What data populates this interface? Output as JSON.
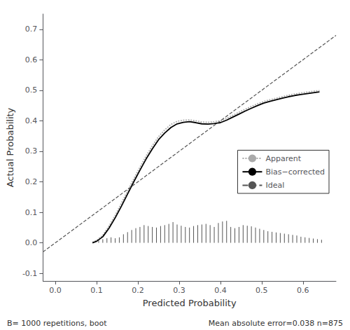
{
  "chart_data": {
    "type": "line",
    "xlabel": "Predicted Probability",
    "ylabel": "Actual Probability",
    "annotations": [
      "B= 1000 repetitions, boot",
      "Mean absolute error=0.038 n=875"
    ],
    "xlim": [
      -0.03,
      0.68
    ],
    "ylim": [
      -0.125,
      0.75
    ],
    "xticks": [
      {
        "value": 0.0,
        "label": "0.0"
      },
      0.1,
      0.2,
      0.3,
      0.4,
      0.5,
      0.6
    ],
    "yticks": [
      -0.1,
      {
        "value": 0.0,
        "label": "0.0"
      },
      0.1,
      0.2,
      0.3,
      0.4,
      0.5,
      0.6,
      0.7
    ],
    "grid": false,
    "legend": "lower right",
    "series": [
      {
        "name": "Apparent",
        "type": "line",
        "color": "#aaaaaa",
        "line_style": "dotted",
        "x": [
          0.09,
          0.1,
          0.115,
          0.13,
          0.145,
          0.16,
          0.175,
          0.19,
          0.205,
          0.22,
          0.235,
          0.25,
          0.265,
          0.28,
          0.295,
          0.31,
          0.325,
          0.34,
          0.355,
          0.37,
          0.385,
          0.4,
          0.415,
          0.43,
          0.445,
          0.46,
          0.475,
          0.49,
          0.505,
          0.52,
          0.535,
          0.55,
          0.565,
          0.58,
          0.595,
          0.61,
          0.625,
          0.64
        ],
        "values": [
          0.002,
          0.008,
          0.025,
          0.055,
          0.09,
          0.13,
          0.17,
          0.21,
          0.248,
          0.285,
          0.318,
          0.348,
          0.37,
          0.388,
          0.398,
          0.402,
          0.403,
          0.4,
          0.396,
          0.395,
          0.397,
          0.4,
          0.408,
          0.418,
          0.428,
          0.438,
          0.447,
          0.456,
          0.463,
          0.469,
          0.474,
          0.479,
          0.484,
          0.488,
          0.491,
          0.494,
          0.497,
          0.499
        ]
      },
      {
        "name": "Bias−corrected",
        "type": "line",
        "color": "#000000",
        "line_style": "solid",
        "x": [
          0.09,
          0.1,
          0.115,
          0.13,
          0.145,
          0.16,
          0.175,
          0.19,
          0.205,
          0.22,
          0.235,
          0.25,
          0.265,
          0.28,
          0.295,
          0.31,
          0.325,
          0.34,
          0.355,
          0.37,
          0.385,
          0.4,
          0.415,
          0.43,
          0.445,
          0.46,
          0.475,
          0.49,
          0.505,
          0.52,
          0.535,
          0.55,
          0.565,
          0.58,
          0.595,
          0.61,
          0.625,
          0.64
        ],
        "values": [
          0.0,
          0.005,
          0.02,
          0.048,
          0.082,
          0.12,
          0.16,
          0.2,
          0.238,
          0.275,
          0.308,
          0.338,
          0.36,
          0.378,
          0.39,
          0.395,
          0.397,
          0.394,
          0.39,
          0.389,
          0.391,
          0.394,
          0.402,
          0.412,
          0.422,
          0.432,
          0.441,
          0.45,
          0.458,
          0.464,
          0.469,
          0.474,
          0.479,
          0.483,
          0.486,
          0.489,
          0.492,
          0.495
        ]
      },
      {
        "name": "Ideal",
        "type": "line",
        "color": "#555555",
        "line_style": "dashed",
        "x": [
          -0.03,
          0.68
        ],
        "values": [
          -0.03,
          0.68
        ]
      },
      {
        "type": "spike",
        "color": "#555555",
        "x": [
          0.105,
          0.115,
          0.125,
          0.135,
          0.145,
          0.155,
          0.165,
          0.175,
          0.185,
          0.195,
          0.205,
          0.215,
          0.225,
          0.235,
          0.245,
          0.255,
          0.265,
          0.275,
          0.285,
          0.295,
          0.305,
          0.315,
          0.325,
          0.335,
          0.345,
          0.355,
          0.365,
          0.375,
          0.385,
          0.395,
          0.405,
          0.415,
          0.425,
          0.435,
          0.445,
          0.455,
          0.465,
          0.475,
          0.485,
          0.495,
          0.505,
          0.515,
          0.525,
          0.535,
          0.545,
          0.555,
          0.565,
          0.575,
          0.585,
          0.595,
          0.605,
          0.615,
          0.625,
          0.635,
          0.645
        ],
        "values": [
          0.008,
          0.012,
          0.015,
          0.018,
          0.015,
          0.018,
          0.028,
          0.035,
          0.042,
          0.048,
          0.052,
          0.058,
          0.055,
          0.052,
          0.05,
          0.055,
          0.058,
          0.062,
          0.068,
          0.06,
          0.056,
          0.052,
          0.05,
          0.055,
          0.058,
          0.06,
          0.062,
          0.058,
          0.052,
          0.065,
          0.07,
          0.072,
          0.052,
          0.048,
          0.052,
          0.058,
          0.056,
          0.054,
          0.05,
          0.046,
          0.042,
          0.038,
          0.036,
          0.034,
          0.032,
          0.03,
          0.028,
          0.026,
          0.024,
          0.02,
          0.018,
          0.016,
          0.014,
          0.012,
          0.01
        ]
      }
    ]
  }
}
